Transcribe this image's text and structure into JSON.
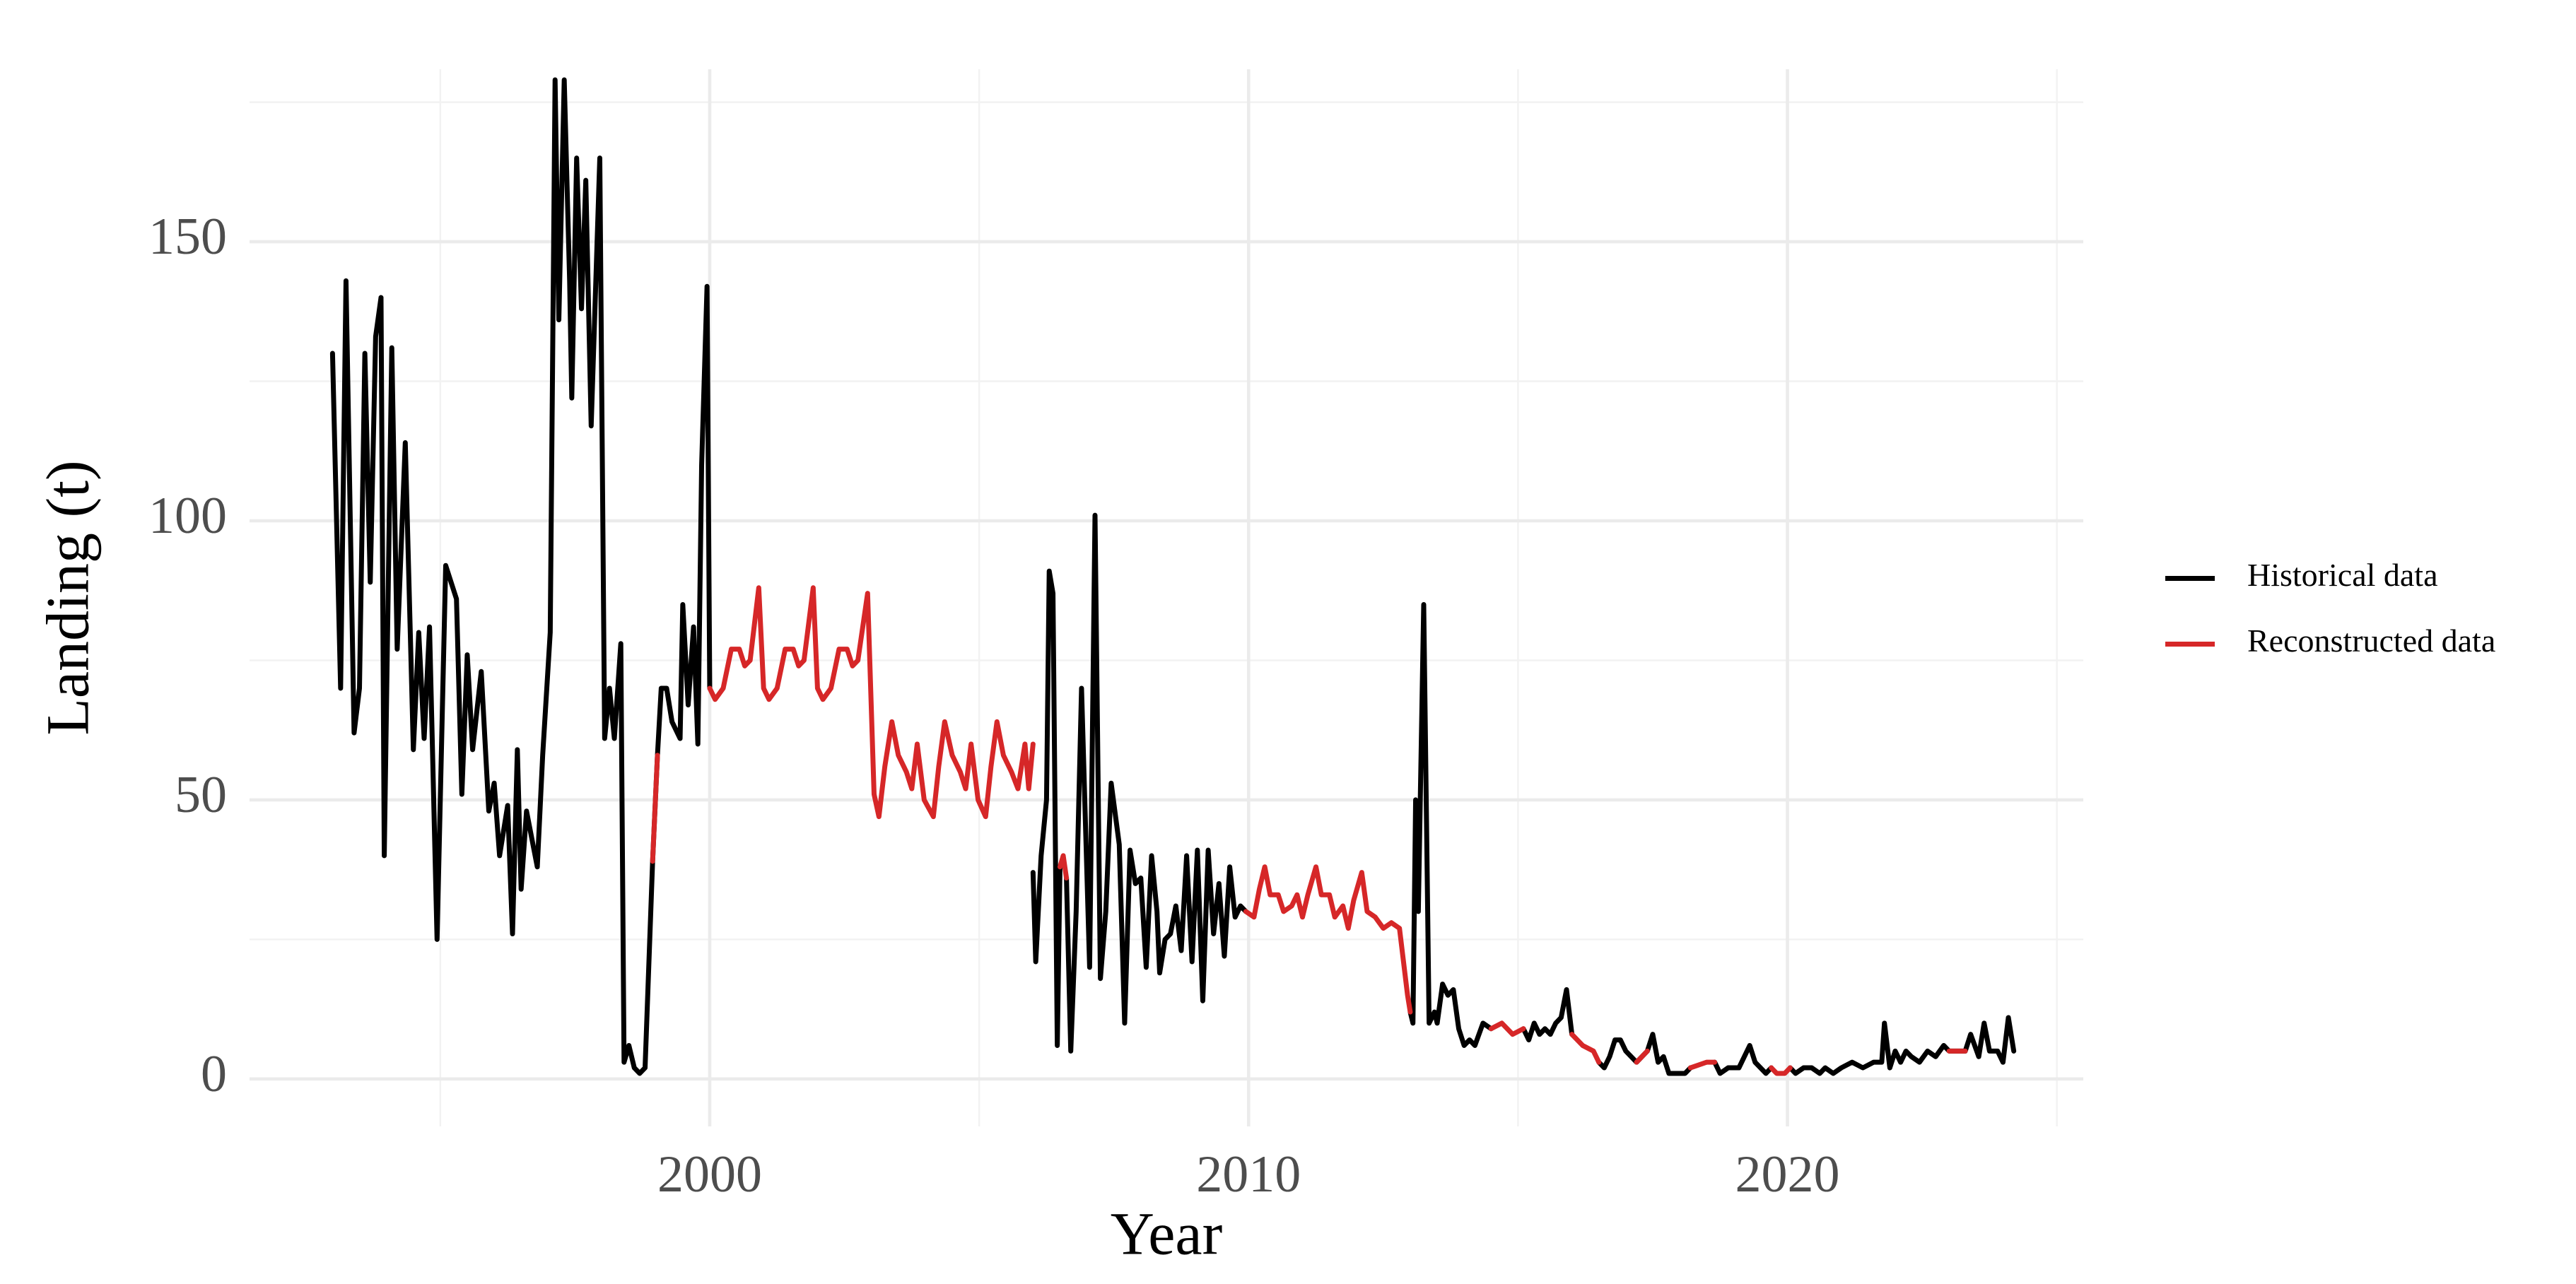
{
  "chart_data": {
    "type": "line",
    "x_label": "Year",
    "y_label": "Landing (t)",
    "xlim": [
      1991.46,
      2025.49
    ],
    "xticks": [
      2000,
      2010,
      2020
    ],
    "ylim": [
      -8.5,
      180.9
    ],
    "yticks": [
      0,
      50,
      100,
      150
    ],
    "grid": true,
    "legend": "right",
    "x": [
      1993.0,
      1993.15,
      1993.25,
      1993.4,
      1993.5,
      1993.6,
      1993.7,
      1993.8,
      1993.9,
      1993.96,
      1994.1,
      1994.2,
      1994.35,
      1994.5,
      1994.6,
      1994.7,
      1994.8,
      1994.94,
      1995.1,
      1995.3,
      1995.4,
      1995.5,
      1995.6,
      1995.76,
      1995.9,
      1996.0,
      1996.1,
      1996.25,
      1996.34,
      1996.43,
      1996.5,
      1996.6,
      1996.8,
      1996.9,
      1997.04,
      1997.13,
      1997.2,
      1997.3,
      1997.4,
      1997.44,
      1997.53,
      1997.62,
      1997.7,
      1997.8,
      1997.96,
      1998.05,
      1998.14,
      1998.23,
      1998.35,
      1998.41,
      1998.5,
      1998.6,
      1998.7,
      1998.8,
      1998.94,
      1999.03,
      1999.1,
      1999.2,
      1999.3,
      1999.45,
      1999.5,
      1999.6,
      1999.7,
      1999.78,
      1999.85,
      1999.95,
      2000.0,
      2000.1,
      2000.25,
      2000.4,
      2000.55,
      2000.65,
      2000.75,
      2000.91,
      2001.0,
      2001.1,
      2001.25,
      2001.4,
      2001.55,
      2001.65,
      2001.75,
      2001.92,
      2002.0,
      2002.1,
      2002.25,
      2002.4,
      2002.55,
      2002.65,
      2002.75,
      2002.93,
      2003.05,
      2003.14,
      2003.25,
      2003.38,
      2003.5,
      2003.65,
      2003.75,
      2003.85,
      2003.98,
      2004.15,
      2004.25,
      2004.36,
      2004.5,
      2004.65,
      2004.75,
      2004.85,
      2004.98,
      2005.12,
      2005.22,
      2005.33,
      2005.45,
      2005.6,
      2005.72,
      2005.85,
      2005.92,
      2006.0,
      2006.05,
      2006.15,
      2006.25,
      2006.3,
      2006.37,
      2006.45,
      2006.5,
      2006.56,
      2006.62,
      2006.7,
      2006.8,
      2006.9,
      2007.05,
      2007.15,
      2007.25,
      2007.35,
      2007.45,
      2007.6,
      2007.7,
      2007.8,
      2007.9,
      2008.0,
      2008.1,
      2008.2,
      2008.3,
      2008.35,
      2008.45,
      2008.55,
      2008.65,
      2008.75,
      2008.85,
      2008.95,
      2009.05,
      2009.15,
      2009.25,
      2009.35,
      2009.45,
      2009.55,
      2009.65,
      2009.75,
      2009.85,
      2009.95,
      2010.1,
      2010.2,
      2010.3,
      2010.4,
      2010.55,
      2010.65,
      2010.8,
      2010.9,
      2011.0,
      2011.1,
      2011.25,
      2011.35,
      2011.5,
      2011.6,
      2011.75,
      2011.85,
      2011.95,
      2012.1,
      2012.2,
      2012.35,
      2012.5,
      2012.65,
      2012.8,
      2012.95,
      2013.0,
      2013.05,
      2013.1,
      2013.15,
      2013.25,
      2013.35,
      2013.45,
      2013.5,
      2013.6,
      2013.7,
      2013.8,
      2013.9,
      2014.0,
      2014.1,
      2014.2,
      2014.35,
      2014.5,
      2014.7,
      2014.9,
      2015.1,
      2015.2,
      2015.3,
      2015.4,
      2015.5,
      2015.6,
      2015.7,
      2015.8,
      2015.9,
      2016.0,
      2016.2,
      2016.4,
      2016.5,
      2016.6,
      2016.7,
      2016.8,
      2016.9,
      2017.0,
      2017.2,
      2017.4,
      2017.5,
      2017.6,
      2017.7,
      2017.8,
      2017.9,
      2018.0,
      2018.1,
      2018.2,
      2018.5,
      2018.65,
      2018.75,
      2018.9,
      2019.0,
      2019.1,
      2019.2,
      2019.3,
      2019.4,
      2019.5,
      2019.6,
      2019.7,
      2019.8,
      2019.95,
      2020.05,
      2020.15,
      2020.3,
      2020.45,
      2020.6,
      2020.7,
      2020.85,
      2021.0,
      2021.2,
      2021.4,
      2021.6,
      2021.75,
      2021.8,
      2021.9,
      2022.0,
      2022.1,
      2022.2,
      2022.3,
      2022.45,
      2022.6,
      2022.75,
      2022.9,
      2023.0,
      2023.3,
      2023.4,
      2023.55,
      2023.65,
      2023.75,
      2023.9,
      2024.0,
      2024.1,
      2024.2
    ],
    "series": [
      {
        "name": "Historical data",
        "color": "#000000",
        "values": [
          130,
          70,
          143,
          62,
          70,
          130,
          89,
          133,
          140,
          40,
          131,
          77,
          114,
          59,
          80,
          61,
          81,
          25,
          92,
          86,
          51,
          76,
          59,
          73,
          48,
          53,
          40,
          49,
          26,
          59,
          34,
          48,
          38,
          58,
          80,
          179,
          136,
          179,
          143,
          122,
          165,
          138,
          161,
          117,
          165,
          61,
          70,
          61,
          78,
          3,
          6,
          2,
          1,
          2,
          39,
          58,
          70,
          70,
          64,
          61,
          85,
          67,
          81,
          60,
          110,
          142,
          70,
          null,
          null,
          null,
          null,
          null,
          null,
          null,
          null,
          null,
          null,
          null,
          null,
          null,
          null,
          null,
          null,
          null,
          null,
          null,
          null,
          null,
          null,
          null,
          null,
          null,
          null,
          null,
          null,
          null,
          null,
          null,
          null,
          null,
          null,
          null,
          null,
          null,
          null,
          null,
          null,
          null,
          null,
          null,
          null,
          null,
          null,
          null,
          null,
          37,
          21,
          40,
          50,
          91,
          87,
          6,
          38,
          null,
          36,
          5,
          30,
          70,
          20,
          101,
          18,
          30,
          53,
          42,
          10,
          41,
          35,
          36,
          20,
          40,
          30,
          19,
          25,
          26,
          31,
          23,
          40,
          21,
          41,
          14,
          41,
          26,
          35,
          22,
          38,
          29,
          31,
          30,
          null,
          null,
          null,
          null,
          null,
          null,
          null,
          null,
          null,
          null,
          null,
          null,
          null,
          null,
          null,
          null,
          null,
          null,
          null,
          null,
          null,
          null,
          null,
          null,
          12,
          10,
          50,
          30,
          85,
          10,
          12,
          10,
          17,
          15,
          16,
          9,
          6,
          7,
          6,
          10,
          9,
          null,
          null,
          9,
          7,
          10,
          8,
          9,
          8,
          10,
          11,
          16,
          8,
          null,
          null,
          3,
          2,
          4,
          7,
          7,
          5,
          3,
          5,
          8,
          3,
          4,
          1,
          1,
          1,
          1,
          2,
          null,
          3,
          1,
          2,
          2,
          2,
          4,
          6,
          3,
          2,
          1,
          2,
          null,
          null,
          2,
          1,
          2,
          2,
          1,
          2,
          1,
          2,
          3,
          2,
          3,
          3,
          10,
          2,
          5,
          3,
          5,
          4,
          3,
          5,
          4,
          6,
          5,
          5,
          8,
          4,
          10,
          5,
          5,
          3,
          11,
          5
        ]
      },
      {
        "name": "Reconstructed data",
        "color": "#d62728",
        "values": [
          null,
          null,
          null,
          null,
          null,
          null,
          null,
          null,
          null,
          null,
          null,
          null,
          null,
          null,
          null,
          null,
          null,
          null,
          null,
          null,
          null,
          null,
          null,
          null,
          null,
          null,
          null,
          null,
          null,
          null,
          null,
          null,
          null,
          null,
          null,
          null,
          null,
          null,
          null,
          null,
          null,
          null,
          null,
          null,
          null,
          null,
          null,
          null,
          null,
          null,
          null,
          null,
          null,
          null,
          39,
          58,
          null,
          null,
          null,
          null,
          null,
          null,
          null,
          null,
          null,
          null,
          70,
          68,
          70,
          77,
          77,
          74,
          75,
          88,
          70,
          68,
          70,
          77,
          77,
          74,
          75,
          88,
          70,
          68,
          70,
          77,
          77,
          74,
          75,
          87,
          51,
          47,
          56,
          64,
          58,
          55,
          52,
          60,
          50,
          47,
          56,
          64,
          58,
          55,
          52,
          60,
          50,
          47,
          56,
          64,
          58,
          55,
          52,
          60,
          52,
          60,
          null,
          null,
          null,
          null,
          null,
          null,
          38,
          40,
          36,
          null,
          null,
          null,
          null,
          null,
          null,
          null,
          null,
          null,
          null,
          null,
          null,
          null,
          null,
          null,
          null,
          null,
          null,
          null,
          null,
          null,
          null,
          null,
          null,
          null,
          null,
          null,
          null,
          null,
          null,
          null,
          null,
          30,
          29,
          34,
          38,
          33,
          33,
          30,
          31,
          33,
          29,
          33,
          38,
          33,
          33,
          29,
          31,
          27,
          32,
          37,
          30,
          29,
          27,
          28,
          27,
          15,
          12,
          null,
          null,
          null,
          null,
          null,
          null,
          null,
          null,
          null,
          null,
          null,
          null,
          null,
          null,
          null,
          9,
          10,
          8,
          9,
          null,
          null,
          null,
          null,
          null,
          null,
          null,
          null,
          8,
          6,
          5,
          3,
          null,
          null,
          null,
          null,
          null,
          3,
          5,
          null,
          null,
          null,
          null,
          null,
          null,
          null,
          2,
          3,
          3,
          null,
          null,
          null,
          null,
          null,
          null,
          null,
          null,
          null,
          2,
          1,
          1,
          2,
          null,
          null,
          null,
          null,
          null,
          null,
          null,
          null,
          null,
          null,
          null,
          null,
          null,
          null,
          null,
          null,
          null,
          null,
          null,
          null,
          null,
          5,
          5,
          null,
          null,
          null,
          null,
          null,
          null,
          null,
          null
        ]
      }
    ]
  }
}
